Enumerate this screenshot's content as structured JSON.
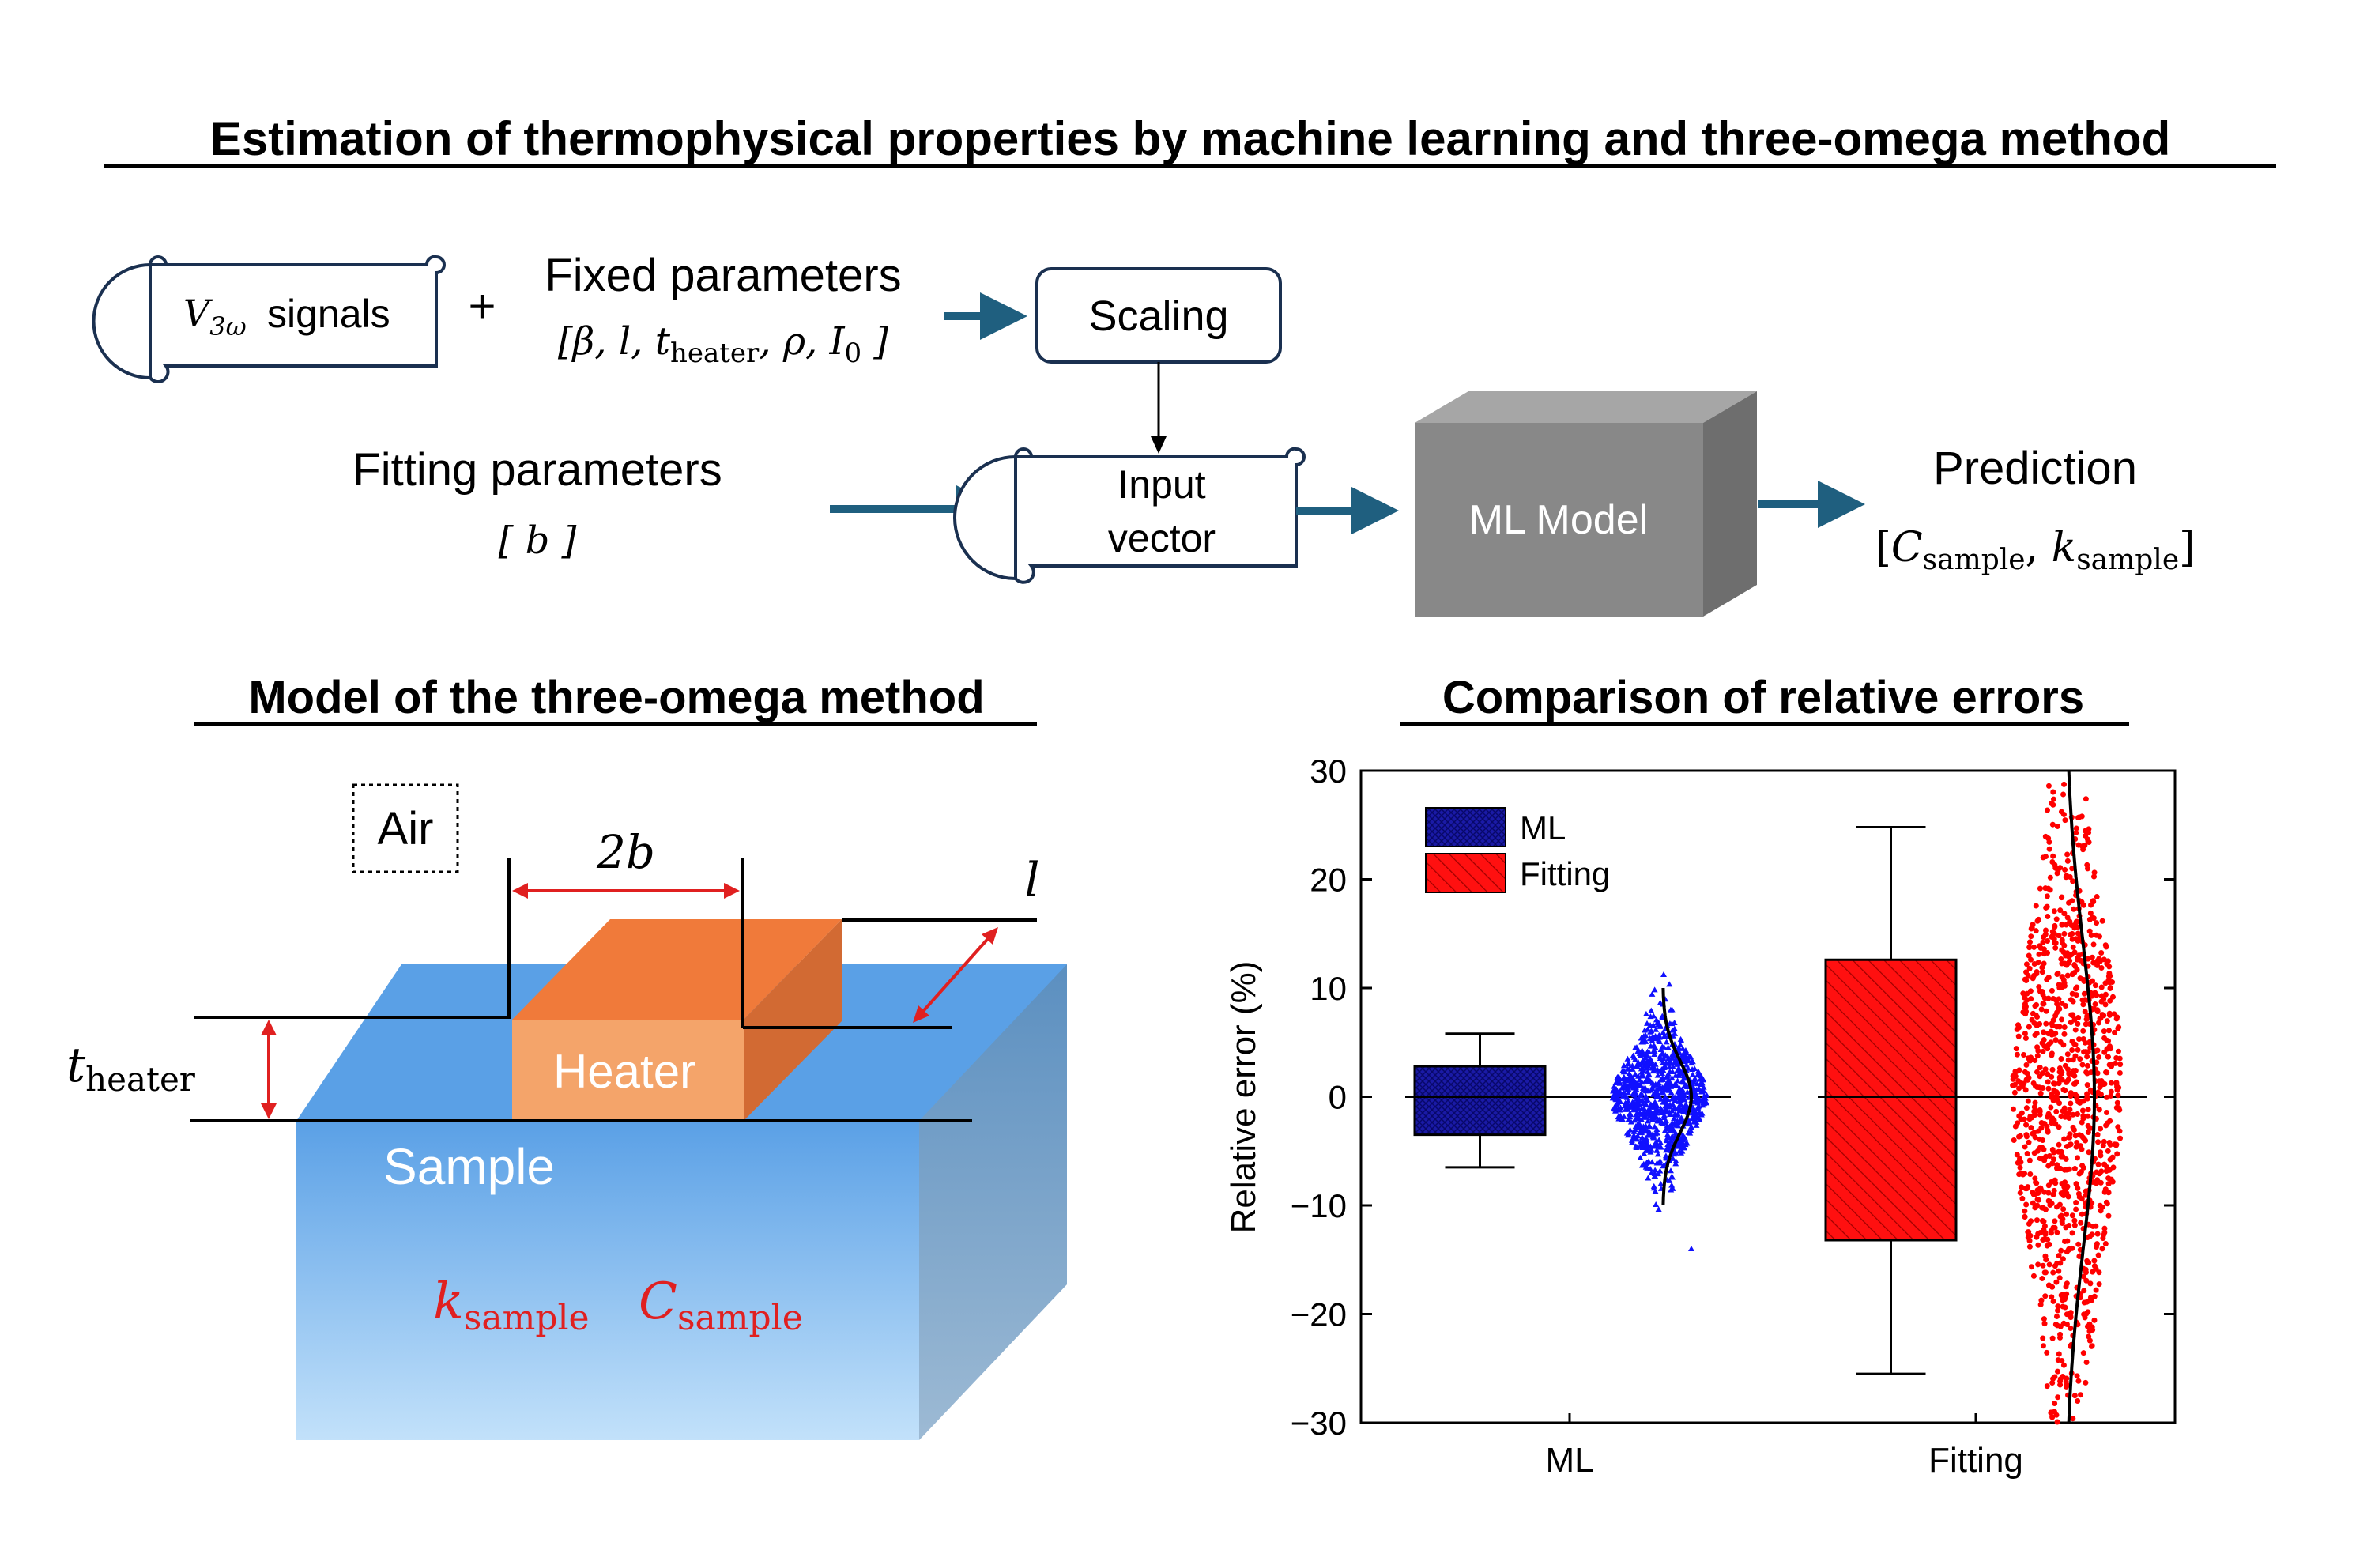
{
  "title": "Estimation of thermophysical properties by machine learning and three-omega method",
  "pipeline": {
    "v3w_label": {
      "v": "V",
      "sub": "3ω",
      "text": " signals"
    },
    "plus": "+",
    "fixed_title": "Fixed parameters",
    "fixed_list": "[β, l, t",
    "fixed_list_sub": "heater",
    "fixed_list_tail": ", ρ, I",
    "fixed_list_sub2": "0",
    "fixed_list_end": " ]",
    "scaling": "Scaling",
    "fitting_title": "Fitting parameters",
    "fitting_list": "[ b ]",
    "input_line1": "Input",
    "input_line2": "vector",
    "ml_model": "ML Model",
    "prediction_title": "Prediction",
    "prediction_c": "C",
    "prediction_k": "k",
    "prediction_sub": "sample",
    "colors": {
      "arrow": "#1f5f7f",
      "box_front": "#888888",
      "box_side": "#6e6e6e",
      "box_top": "#a6a6a6"
    }
  },
  "model": {
    "heading": "Model of the three-omega method",
    "air": "Air",
    "two_b": "2b",
    "l": "l",
    "t_heater": "t",
    "t_heater_sub": "heater",
    "heater": "Heater",
    "sample": "Sample",
    "k_sample": "k",
    "c_sample": "C",
    "sub_sample": "sample",
    "colors": {
      "heater": "#f4a46a",
      "heater_top": "#f07a3a",
      "heater_side": "#d26a33",
      "sample_top": "#5aa0e6",
      "sample_side": "#7fa5c9",
      "arrow_red": "#e02020",
      "label_red": "#e02020"
    }
  },
  "chart": {
    "heading": "Comparison of relative errors",
    "ylabel": "Relative error (%)",
    "legend": [
      "ML",
      "Fitting"
    ]
  },
  "chart_data": {
    "type": "box",
    "ylabel": "Relative error (%)",
    "ylim": [
      -30,
      30
    ],
    "yticks": [
      -30,
      -20,
      -10,
      0,
      10,
      20,
      30
    ],
    "categories": [
      "ML",
      "Fitting"
    ],
    "series": [
      {
        "name": "ML",
        "color": "#1a1aa6",
        "scatter_color": "#1010ff",
        "whisker_low": -6.5,
        "q1": -3.5,
        "median": 0,
        "q3": 2.8,
        "whisker_high": 5.8,
        "scatter_range": [
          -11,
          12
        ],
        "scatter_outlier": -14,
        "dist_sigma": 3.3
      },
      {
        "name": "Fitting",
        "color": "#ff0000",
        "scatter_color": "#ff0000",
        "whisker_low": -25.5,
        "q1": -13.2,
        "median": 0,
        "q3": 12.6,
        "whisker_high": 24.8,
        "scatter_range": [
          -30,
          29
        ],
        "dist_sigma": 14
      }
    ],
    "reference_line": 0,
    "legend_position": "top-left"
  }
}
